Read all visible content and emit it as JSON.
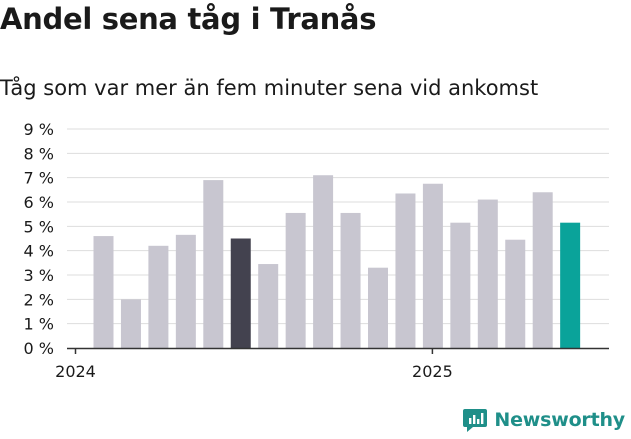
{
  "title": "Andel sena tåg i Tranås",
  "subtitle": "Tåg som var mer än fem minuter sena vid ankomst",
  "brand": {
    "name": "Newsworthy",
    "icon": "newsworthy-logo-icon"
  },
  "colors": {
    "default": "#c8c6d0",
    "highlight_dark": "#43424f",
    "highlight_teal": "#0aa39a",
    "grid": "#dddddd",
    "axis": "#333333"
  },
  "chart_data": {
    "type": "bar",
    "ylim": [
      0,
      9
    ],
    "y_ticks": [
      {
        "value": 0,
        "label": "0 %"
      },
      {
        "value": 1,
        "label": "1 %"
      },
      {
        "value": 2,
        "label": "2 %"
      },
      {
        "value": 3,
        "label": "3 %"
      },
      {
        "value": 4,
        "label": "4 %"
      },
      {
        "value": 5,
        "label": "5 %"
      },
      {
        "value": 6,
        "label": "6 %"
      },
      {
        "value": 7,
        "label": "7 %"
      },
      {
        "value": 8,
        "label": "8 %"
      },
      {
        "value": 9,
        "label": "9 %"
      }
    ],
    "x_ticks": [
      {
        "index": 0,
        "label": "2024"
      },
      {
        "index": 12,
        "label": "2025"
      }
    ],
    "values": [
      4.6,
      2.0,
      4.2,
      4.65,
      6.9,
      4.5,
      3.45,
      5.55,
      7.1,
      5.55,
      3.3,
      6.35,
      6.75,
      5.15,
      6.1,
      4.45,
      6.4,
      5.15
    ],
    "highlights": {
      "5": "highlight_dark",
      "17": "highlight_teal"
    },
    "grid": true
  }
}
